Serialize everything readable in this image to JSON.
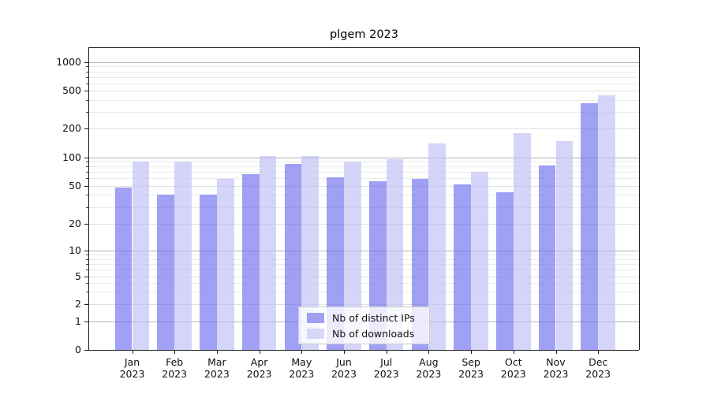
{
  "chart_data": {
    "type": "bar",
    "title": "plgem 2023",
    "categories": [
      "Jan 2023",
      "Feb 2023",
      "Mar 2023",
      "Apr 2023",
      "May 2023",
      "Jun 2023",
      "Jul 2023",
      "Aug 2023",
      "Sep 2023",
      "Oct 2023",
      "Nov 2023",
      "Dec 2023"
    ],
    "x_tick_month": [
      "Jan",
      "Feb",
      "Mar",
      "Apr",
      "May",
      "Jun",
      "Jul",
      "Aug",
      "Sep",
      "Oct",
      "Nov",
      "Dec"
    ],
    "x_tick_year": "2023",
    "series": [
      {
        "name": "Nb of distinct IPs",
        "color": "rgba(105,105,237,0.63)",
        "flat_color": "#a0a0f1",
        "values": [
          48,
          40,
          40,
          66,
          86,
          61,
          56,
          59,
          52,
          43,
          82,
          370
        ]
      },
      {
        "name": "Nb of downloads",
        "color": "rgba(190,190,246,0.65)",
        "flat_color": "#d7d7f9",
        "values": [
          90,
          90,
          59,
          103,
          103,
          90,
          96,
          140,
          70,
          180,
          150,
          450
        ]
      }
    ],
    "y_ticks": [
      0,
      1,
      2,
      5,
      10,
      20,
      50,
      100,
      200,
      500,
      1000
    ],
    "y_tick_labels": [
      "0",
      "1",
      "2",
      "5",
      "10",
      "20",
      "50",
      "100",
      "200",
      "500",
      "1000"
    ],
    "y_major_gridlines": [
      1,
      10,
      100,
      1000
    ],
    "y_minor_gridlines": [
      3,
      4,
      6,
      7,
      8,
      9,
      30,
      40,
      60,
      70,
      80,
      90,
      300,
      400,
      600,
      700,
      800,
      900
    ],
    "scale": "log-above-1-linear-below",
    "ylim": [
      0,
      1400
    ],
    "grid": true,
    "legend_position": "lower center",
    "legend_title": null
  }
}
